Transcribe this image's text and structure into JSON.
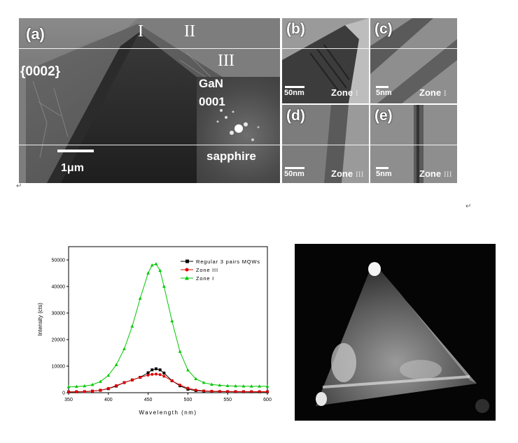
{
  "figure_top": {
    "panel_a": {
      "label": "(a)",
      "plane": "{0002}",
      "zone_marks": [
        "I",
        "II",
        "III"
      ],
      "scale_label": "1μm",
      "inset_line1": "GaN",
      "inset_line2": "0001",
      "inset_bottom": "sapphire"
    },
    "panel_b": {
      "label": "(b)",
      "scale_label": "50nm",
      "zone_word": "Zone",
      "zone_num": "I"
    },
    "panel_c": {
      "label": "(c)",
      "scale_label": "5nm",
      "zone_word": "Zone",
      "zone_num": "I"
    },
    "panel_d": {
      "label": "(d)",
      "scale_label": "50nm",
      "zone_word": "Zone",
      "zone_num": "III"
    },
    "panel_e": {
      "label": "(e)",
      "scale_label": "5nm",
      "zone_word": "Zone",
      "zone_num": "III"
    },
    "return_mark": "↵"
  },
  "chart_data": {
    "type": "line",
    "title": "",
    "xlabel": "Wavelength (nm)",
    "ylabel": "Intensity (cts)",
    "xlim": [
      350,
      600
    ],
    "ylim": [
      0,
      55000
    ],
    "xticks": [
      "350",
      "400",
      "450",
      "500",
      "550",
      "600"
    ],
    "yticks": [
      "0",
      "10000",
      "20000",
      "30000",
      "40000",
      "50000"
    ],
    "x": [
      350,
      360,
      370,
      380,
      390,
      400,
      410,
      420,
      430,
      440,
      450,
      455,
      460,
      465,
      470,
      480,
      490,
      500,
      510,
      520,
      530,
      540,
      550,
      560,
      570,
      580,
      590,
      600
    ],
    "series": [
      {
        "name": "Regular 3 pairs MQWs",
        "color": "#000000",
        "marker": "square",
        "values": [
          300,
          350,
          400,
          600,
          900,
          1500,
          2500,
          3800,
          4800,
          5800,
          7500,
          8600,
          9000,
          8600,
          7400,
          4500,
          2600,
          1300,
          800,
          550,
          450,
          400,
          380,
          360,
          350,
          340,
          330,
          320
        ]
      },
      {
        "name": "Zone III",
        "color": "#e00000",
        "marker": "circle",
        "values": [
          300,
          330,
          380,
          550,
          900,
          1600,
          2700,
          3800,
          4800,
          5800,
          6600,
          6900,
          7000,
          6800,
          6200,
          4500,
          2900,
          1700,
          1000,
          700,
          550,
          480,
          450,
          430,
          420,
          410,
          400,
          390
        ]
      },
      {
        "name": "Zone I",
        "color": "#00c800",
        "marker": "triangle",
        "values": [
          2200,
          2300,
          2500,
          3000,
          4200,
          6500,
          10500,
          16500,
          25000,
          35500,
          45000,
          48000,
          48500,
          46000,
          40000,
          27000,
          15500,
          8500,
          5200,
          3800,
          3100,
          2800,
          2600,
          2500,
          2450,
          2400,
          2400,
          2400
        ]
      }
    ]
  },
  "chart_text": {
    "legend_regular": "Regular 3 pairs MQWs",
    "legend_zone3": "Zone III",
    "legend_zone1": "Zone I"
  },
  "side_marks": {
    "mark1": "↵"
  }
}
